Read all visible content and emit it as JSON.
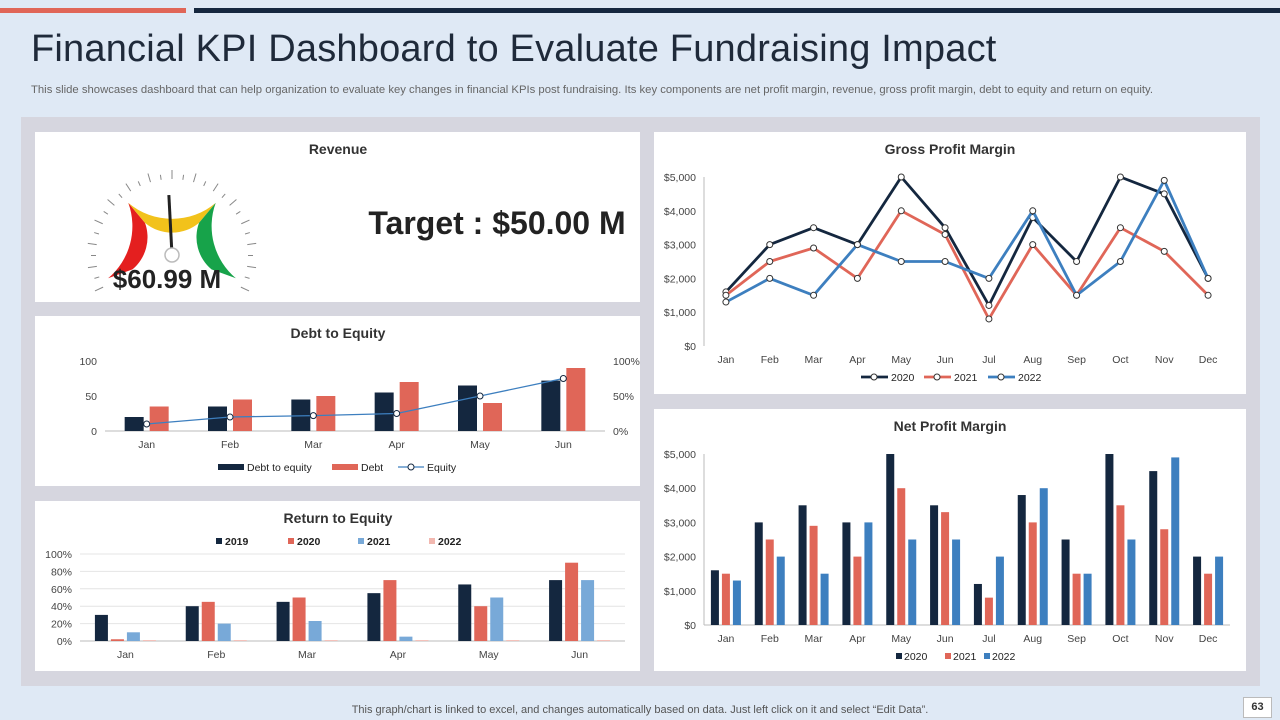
{
  "header": {
    "title": "Financial KPI Dashboard to Evaluate Fundraising Impact",
    "subtitle": "This slide showcases dashboard that can help organization to evaluate key changes in financial KPIs post fundraising. Its key components are net profit margin, revenue, gross profit margin, debt to equity and return on equity."
  },
  "revenue": {
    "title": "Revenue",
    "value": "$60.99 M",
    "target": "Target : $50.00 M"
  },
  "footer": {
    "note": "This graph/chart is linked to excel,  and changes automatically based on data. Just left click on it and select “Edit Data”.",
    "page": "63"
  },
  "colors": {
    "navy": "#14273f",
    "red": "#e06658",
    "blue": "#3d7fbf",
    "lightblue": "#78a9d8",
    "pink": "#f2b8b0"
  },
  "chart_data": [
    {
      "id": "debt_to_equity",
      "type": "bar",
      "title": "Debt to Equity",
      "categories": [
        "Jan",
        "Feb",
        "Mar",
        "Apr",
        "May",
        "Jun"
      ],
      "series": [
        {
          "name": "Debt to equity",
          "type": "bar",
          "values": [
            20,
            35,
            45,
            55,
            65,
            72
          ]
        },
        {
          "name": "Debt",
          "type": "bar",
          "values": [
            35,
            45,
            50,
            70,
            40,
            90
          ]
        },
        {
          "name": "Equity",
          "type": "line",
          "axis": "secondary",
          "values": [
            10,
            20,
            22,
            25,
            50,
            75
          ]
        }
      ],
      "ylim": [
        0,
        100
      ],
      "yticks": [
        "0",
        "50",
        "100"
      ],
      "y2lim": [
        0,
        100
      ],
      "y2ticks": [
        "0%",
        "50%",
        "100%"
      ]
    },
    {
      "id": "return_on_equity",
      "type": "bar",
      "title": "Return to Equity",
      "categories": [
        "Jan",
        "Feb",
        "Mar",
        "Apr",
        "May",
        "Jun"
      ],
      "series": [
        {
          "name": "2019",
          "values": [
            30,
            40,
            45,
            55,
            65,
            70
          ]
        },
        {
          "name": "2020",
          "values": [
            2,
            45,
            50,
            70,
            40,
            90
          ]
        },
        {
          "name": "2021",
          "values": [
            10,
            20,
            23,
            5,
            50,
            70
          ]
        },
        {
          "name": "2022",
          "values": [
            1,
            1,
            1,
            1,
            1,
            1
          ]
        }
      ],
      "ylim": [
        0,
        100
      ],
      "yticks": [
        "0%",
        "20%",
        "40%",
        "60%",
        "80%",
        "100%"
      ]
    },
    {
      "id": "gross_profit_margin",
      "type": "line",
      "title": "Gross Profit Margin",
      "categories": [
        "Jan",
        "Feb",
        "Mar",
        "Apr",
        "May",
        "Jun",
        "Jul",
        "Aug",
        "Sep",
        "Oct",
        "Nov",
        "Dec"
      ],
      "series": [
        {
          "name": "2020",
          "values": [
            1600,
            3000,
            3500,
            3000,
            5000,
            3500,
            1200,
            3800,
            2500,
            5000,
            4500,
            2000
          ]
        },
        {
          "name": "2021",
          "values": [
            1500,
            2500,
            2900,
            2000,
            4000,
            3300,
            800,
            3000,
            1500,
            3500,
            2800,
            1500
          ]
        },
        {
          "name": "2022",
          "values": [
            1300,
            2000,
            1500,
            3000,
            2500,
            2500,
            2000,
            4000,
            1500,
            2500,
            4900,
            2000
          ]
        }
      ],
      "ylim": [
        0,
        5000
      ],
      "yticks": [
        "$0",
        "$1,000",
        "$2,000",
        "$3,000",
        "$4,000",
        "$5,000"
      ]
    },
    {
      "id": "net_profit_margin",
      "type": "bar",
      "title": "Net Profit Margin",
      "categories": [
        "Jan",
        "Feb",
        "Mar",
        "Apr",
        "May",
        "Jun",
        "Jul",
        "Aug",
        "Sep",
        "Oct",
        "Nov",
        "Dec"
      ],
      "series": [
        {
          "name": "2020",
          "values": [
            1600,
            3000,
            3500,
            3000,
            5000,
            3500,
            1200,
            3800,
            2500,
            5000,
            4500,
            2000
          ]
        },
        {
          "name": "2021",
          "values": [
            1500,
            2500,
            2900,
            2000,
            4000,
            3300,
            800,
            3000,
            1500,
            3500,
            2800,
            1500
          ]
        },
        {
          "name": "2022",
          "values": [
            1300,
            2000,
            1500,
            3000,
            2500,
            2500,
            2000,
            4000,
            1500,
            2500,
            4900,
            2000
          ]
        }
      ],
      "ylim": [
        0,
        5000
      ],
      "yticks": [
        "$0",
        "$1,000",
        "$2,000",
        "$3,000",
        "$4,000",
        "$5,000"
      ]
    }
  ]
}
